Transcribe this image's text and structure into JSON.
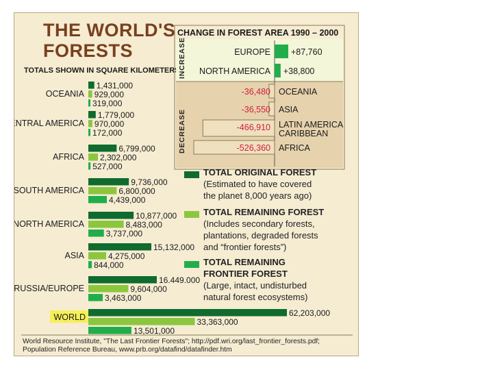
{
  "header": {
    "title_line1": "THE WORLD'S",
    "title_line2": "FORESTS",
    "subtitle": "TOTALS SHOWN IN SQUARE KILOMETERS"
  },
  "chart_data": [
    {
      "type": "bar",
      "title": "THE WORLD'S FORESTS",
      "subtitle": "TOTALS SHOWN IN SQUARE KILOMETERS",
      "orientation": "horizontal",
      "categories": [
        "OCEANIA",
        "CENTRAL AMERICA",
        "AFRICA",
        "SOUTH AMERICA",
        "NORTH AMERICA",
        "ASIA",
        "RUSSIA/EUROPE",
        "WORLD"
      ],
      "highlighted_category": "WORLD",
      "series": [
        {
          "name": "TOTAL ORIGINAL FOREST",
          "color": "#0f6b2e",
          "values": [
            1431000,
            1779000,
            6799000,
            9736000,
            10877000,
            15132000,
            16449000,
            62203000
          ],
          "labels": [
            "1,431,000",
            "1,779,000",
            "6,799,000",
            "9,736,000",
            "10,877,000",
            "15,132,000",
            "16.449.000",
            "62,203,000"
          ]
        },
        {
          "name": "TOTAL REMAINING FOREST",
          "color": "#8cc63f",
          "values": [
            929000,
            970000,
            2302000,
            6800000,
            8483000,
            4275000,
            9604000,
            33363000
          ],
          "labels": [
            "929,000",
            "970,000",
            "2,302,000",
            "6,800,000",
            "8,483,000",
            "4,275,000",
            "9,604,000",
            "33,363,000"
          ]
        },
        {
          "name": "TOTAL REMAINING FRONTIER FOREST",
          "color": "#22ad4b",
          "values": [
            319000,
            172000,
            527000,
            4439000,
            3737000,
            844000,
            3463000,
            13501000
          ],
          "labels": [
            "319,000",
            "172,000",
            "527,000",
            "4,439,000",
            "3,737,000",
            "844,000",
            "3,463,000",
            "13,501,000"
          ]
        }
      ]
    },
    {
      "type": "bar",
      "title": "CHANGE IN FOREST AREA 1990 – 2000",
      "orientation": "horizontal",
      "groups": [
        {
          "label": "INCREASE",
          "items": [
            {
              "region": "EUROPE",
              "value": 87760,
              "label": "+87,760"
            },
            {
              "region": "NORTH AMERICA",
              "value": 38800,
              "label": "+38,800"
            }
          ]
        },
        {
          "label": "DECREASE",
          "items": [
            {
              "region": "OCEANIA",
              "value": -36480,
              "label": "-36,480"
            },
            {
              "region": "ASIA",
              "value": -36550,
              "label": "-36,550"
            },
            {
              "region": "LATIN AMERICA CARIBBEAN",
              "region_lines": [
                "LATIN AMERICA",
                "CARIBBEAN"
              ],
              "value": -466910,
              "label": "-466,910"
            },
            {
              "region": "AFRICA",
              "value": -526360,
              "label": "-526,360"
            }
          ]
        }
      ]
    }
  ],
  "legend": [
    {
      "heading": "TOTAL ORIGINAL FOREST",
      "lines": [
        "(Estimated to have covered",
        "the planet 8,000 years ago)"
      ],
      "color": "#0f6b2e"
    },
    {
      "heading": "TOTAL REMAINING FOREST",
      "lines": [
        "(Includes secondary forests,",
        "plantations, degraded forests",
        "and “frontier forests”)"
      ],
      "color": "#8cc63f"
    },
    {
      "heading": "TOTAL REMAINING",
      "heading2": "FRONTIER FOREST",
      "lines": [
        "(Large, intact, undisturbed",
        "natural forest ecosystems)"
      ],
      "color": "#22ad4b"
    }
  ],
  "footnote": {
    "line1": "World Resource Institute, \"The Last Frontier Forests\"; http://pdf.wri.org/last_frontier_forests.pdf;",
    "line2": "Population Reference Bureau, www.prb.org/datafind/datafinder.htm"
  },
  "colors": {
    "background": "#f5ecd2",
    "title": "#7a3f1e",
    "increase_panel": "#f3f6d8",
    "decrease_panel": "#e6d2ad",
    "decrease_bar": "#efe0c0",
    "decrease_label": "#d1203a",
    "increase_bar": "#22ad4b",
    "world_highlight": "#f6ef5a"
  }
}
